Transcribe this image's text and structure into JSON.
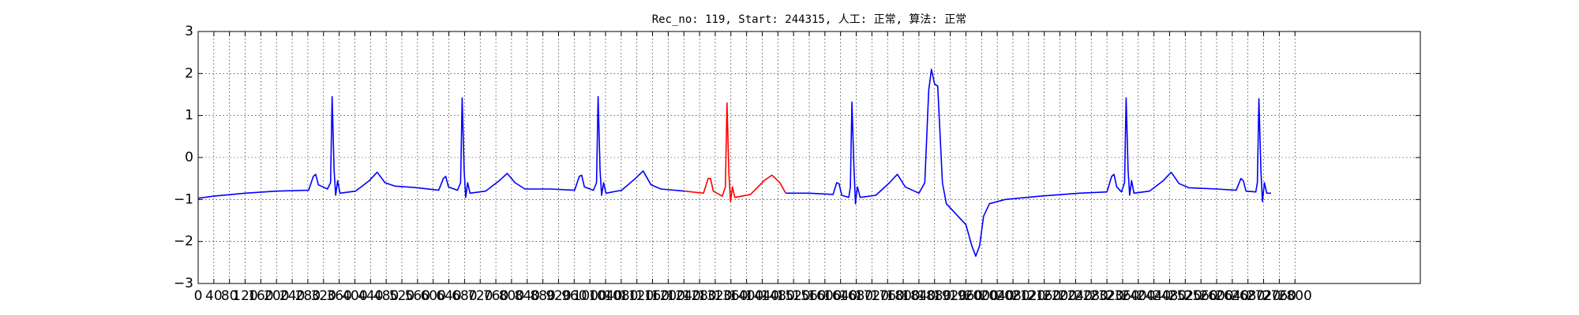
{
  "chart_data": {
    "type": "line",
    "title": "Rec_no: 119, Start: 244315, 人工: 正常, 算法: 正常",
    "grid": true,
    "xlim": [
      0,
      3120
    ],
    "ylim": [
      -3,
      3
    ],
    "yticks": [
      {
        "value": -3,
        "label": "−3"
      },
      {
        "value": -2,
        "label": "−2"
      },
      {
        "value": -1,
        "label": "−1"
      },
      0,
      1,
      2,
      3
    ],
    "xticks": [
      0,
      40,
      80,
      120,
      160,
      200,
      240,
      280,
      320,
      360,
      400,
      440,
      480,
      520,
      560,
      600,
      640,
      680,
      720,
      760,
      800,
      840,
      880,
      920,
      960,
      1000,
      1040,
      1080,
      1120,
      1160,
      1200,
      1240,
      1280,
      1320,
      1360,
      1400,
      1440,
      1480,
      1520,
      1560,
      1600,
      1640,
      1680,
      1720,
      1760,
      1800,
      1840,
      1880,
      1920,
      1960,
      2000,
      2040,
      2080,
      2120,
      2160,
      2200,
      2240,
      2280,
      2320,
      2360,
      2400,
      2440,
      2480,
      2520,
      2560,
      2600,
      2640,
      2680,
      2720,
      2760,
      2800
    ],
    "x": [
      0,
      40,
      120,
      200,
      282,
      294,
      300,
      307,
      330,
      338,
      342,
      347,
      351,
      356,
      362,
      402,
      437,
      457,
      477,
      502,
      560,
      614,
      626,
      632,
      639,
      662,
      670,
      674,
      679,
      683,
      688,
      694,
      734,
      769,
      789,
      809,
      834,
      900,
      961,
      973,
      979,
      986,
      1009,
      1017,
      1021,
      1026,
      1030,
      1035,
      1041,
      1081,
      1116,
      1136,
      1156,
      1181,
      1242,
      1290,
      1302,
      1308,
      1315,
      1338,
      1346,
      1350,
      1355,
      1359,
      1364,
      1370,
      1410,
      1445,
      1465,
      1485,
      1500,
      1560,
      1621,
      1630,
      1636,
      1643,
      1661,
      1665,
      1669,
      1674,
      1678,
      1683,
      1690,
      1730,
      1765,
      1785,
      1805,
      1840,
      1855,
      1865,
      1872,
      1880,
      1888,
      1900,
      1910,
      1930,
      1960,
      1975,
      1985,
      1995,
      2005,
      2020,
      2060,
      2150,
      2250,
      2320,
      2332,
      2338,
      2345,
      2357,
      2365,
      2369,
      2374,
      2378,
      2383,
      2389,
      2429,
      2464,
      2484,
      2504,
      2529,
      2600,
      2650,
      2662,
      2668,
      2675,
      2700,
      2704,
      2708,
      2713,
      2717,
      2722,
      2728,
      2739
    ],
    "series": [
      {
        "color": "#0000ff",
        "values": [
          -0.97,
          -0.92,
          -0.85,
          -0.8,
          -0.78,
          -0.45,
          -0.4,
          -0.65,
          -0.75,
          -0.6,
          1.45,
          -0.3,
          -0.9,
          -0.55,
          -0.85,
          -0.8,
          -0.55,
          -0.35,
          -0.6,
          -0.68,
          -0.72,
          -0.78,
          -0.5,
          -0.45,
          -0.7,
          -0.78,
          -0.6,
          1.42,
          -0.3,
          -0.95,
          -0.6,
          -0.85,
          -0.8,
          -0.55,
          -0.38,
          -0.6,
          -0.75,
          -0.75,
          -0.78,
          -0.45,
          -0.42,
          -0.7,
          -0.78,
          -0.6,
          1.45,
          -0.3,
          -0.9,
          -0.6,
          -0.85,
          -0.78,
          -0.5,
          -0.32,
          -0.65,
          -0.75,
          -0.8,
          null,
          null,
          null,
          null,
          null,
          null,
          null,
          null,
          null,
          null,
          null,
          null,
          null,
          null,
          null,
          -0.85,
          -0.85,
          -0.88,
          -0.6,
          -0.62,
          -0.9,
          -0.95,
          -0.7,
          1.32,
          -0.2,
          -1.1,
          -0.7,
          -0.95,
          -0.9,
          -0.6,
          -0.4,
          -0.7,
          -0.85,
          -0.6,
          1.6,
          2.1,
          1.75,
          1.7,
          -0.6,
          -1.1,
          -1.3,
          -1.6,
          -2.1,
          -2.35,
          -2.1,
          -1.4,
          -1.1,
          -1.0,
          -0.92,
          -0.85,
          -0.82,
          -0.45,
          -0.4,
          -0.7,
          -0.82,
          -0.6,
          1.42,
          -0.3,
          -0.9,
          -0.55,
          -0.85,
          -0.8,
          -0.55,
          -0.35,
          -0.62,
          -0.72,
          -0.75,
          -0.78,
          -0.5,
          -0.55,
          -0.8,
          -0.82,
          -0.6,
          1.4,
          -0.3,
          -1.05,
          -0.6,
          -0.85,
          -0.85
        ]
      },
      {
        "color": "#ff0000",
        "values": [
          null,
          null,
          null,
          null,
          null,
          null,
          null,
          null,
          null,
          null,
          null,
          null,
          null,
          null,
          null,
          null,
          null,
          null,
          null,
          null,
          null,
          null,
          null,
          null,
          null,
          null,
          null,
          null,
          null,
          null,
          null,
          null,
          null,
          null,
          null,
          null,
          null,
          null,
          null,
          null,
          null,
          null,
          null,
          null,
          null,
          null,
          null,
          null,
          null,
          null,
          null,
          null,
          null,
          null,
          -0.8,
          -0.85,
          -0.5,
          -0.5,
          -0.8,
          -0.92,
          -0.7,
          1.3,
          -0.4,
          -1.05,
          -0.7,
          -0.95,
          -0.88,
          -0.55,
          -0.42,
          -0.6,
          -0.85,
          null,
          null,
          null,
          null,
          null,
          null,
          null,
          null,
          null,
          null,
          null,
          null,
          null,
          null,
          null,
          null,
          null,
          null,
          null,
          null,
          null,
          null,
          null,
          null,
          null,
          null,
          null,
          null,
          null,
          null,
          null,
          null,
          null,
          null,
          null,
          null,
          null,
          null,
          null,
          null,
          null,
          null,
          null,
          null,
          null,
          null,
          null,
          null,
          null,
          null,
          null,
          null,
          null,
          null,
          null,
          null,
          null,
          null,
          null,
          null,
          null,
          null,
          null
        ]
      }
    ]
  }
}
